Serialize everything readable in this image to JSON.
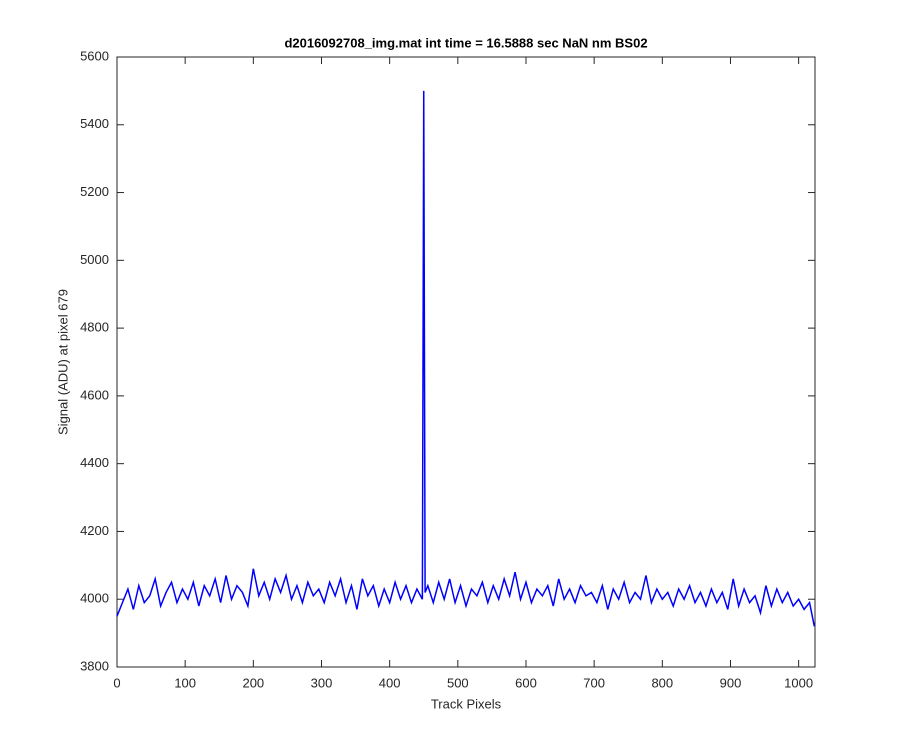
{
  "chart_data": {
    "type": "line",
    "title": "d2016092708_img.mat int time = 16.5888 sec  NaN nm BS02",
    "x_label": "Track Pixels",
    "y_label": "Signal (ADU) at pixel 679",
    "x": [
      0,
      8,
      16,
      24,
      32,
      40,
      48,
      56,
      64,
      72,
      80,
      88,
      96,
      104,
      112,
      120,
      128,
      136,
      144,
      152,
      160,
      168,
      176,
      184,
      192,
      200,
      208,
      216,
      224,
      232,
      240,
      248,
      256,
      264,
      272,
      280,
      288,
      296,
      304,
      312,
      320,
      328,
      336,
      344,
      352,
      360,
      368,
      376,
      384,
      392,
      400,
      408,
      416,
      424,
      432,
      440,
      448,
      450,
      452,
      456,
      464,
      472,
      480,
      488,
      496,
      504,
      512,
      520,
      528,
      536,
      544,
      552,
      560,
      568,
      576,
      584,
      592,
      600,
      608,
      616,
      624,
      632,
      640,
      648,
      656,
      664,
      672,
      680,
      688,
      696,
      704,
      712,
      720,
      728,
      736,
      744,
      752,
      760,
      768,
      776,
      784,
      792,
      800,
      808,
      816,
      824,
      832,
      840,
      848,
      856,
      864,
      872,
      880,
      888,
      896,
      904,
      912,
      920,
      928,
      936,
      944,
      952,
      960,
      968,
      976,
      984,
      992,
      1000,
      1008,
      1016,
      1023
    ],
    "series": [
      {
        "color": "#0000ff",
        "values": [
          3950,
          3990,
          4030,
          3970,
          4040,
          3990,
          4010,
          4060,
          3980,
          4020,
          4050,
          3990,
          4030,
          4000,
          4050,
          3980,
          4040,
          4010,
          4060,
          3990,
          4070,
          4000,
          4040,
          4020,
          3980,
          4090,
          4010,
          4050,
          4000,
          4060,
          4020,
          4070,
          4000,
          4040,
          3990,
          4050,
          4010,
          4030,
          3990,
          4050,
          4010,
          4060,
          3990,
          4040,
          3970,
          4060,
          4010,
          4040,
          3980,
          4030,
          3990,
          4050,
          4000,
          4040,
          3990,
          4030,
          4000,
          5500,
          4020,
          4040,
          3990,
          4050,
          4000,
          4060,
          3990,
          4040,
          3980,
          4030,
          4010,
          4050,
          3990,
          4040,
          4000,
          4060,
          4010,
          4080,
          4000,
          4050,
          3990,
          4030,
          4010,
          4040,
          3980,
          4060,
          4000,
          4030,
          3990,
          4040,
          4010,
          4020,
          3990,
          4040,
          3970,
          4030,
          4000,
          4050,
          3990,
          4020,
          4000,
          4070,
          3990,
          4030,
          4000,
          4020,
          3980,
          4030,
          4000,
          4040,
          3990,
          4020,
          3980,
          4030,
          3990,
          4020,
          3970,
          4060,
          3980,
          4030,
          3990,
          4010,
          3960,
          4040,
          3980,
          4030,
          3990,
          4020,
          3980,
          4000,
          3970,
          3990,
          3920
        ]
      }
    ],
    "xlim": [
      0,
      1024
    ],
    "ylim": [
      3800,
      5600
    ],
    "xticks": [
      0,
      100,
      200,
      300,
      400,
      500,
      600,
      700,
      800,
      900,
      1000
    ],
    "yticks": [
      3800,
      4000,
      4200,
      4400,
      4600,
      4800,
      5000,
      5200,
      5400,
      5600
    ],
    "grid": false
  }
}
